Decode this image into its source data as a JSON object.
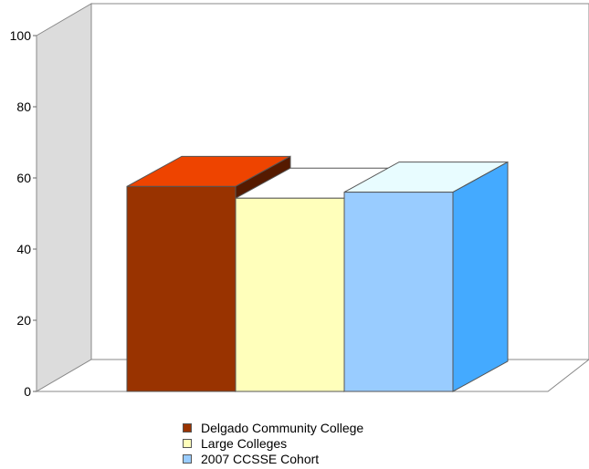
{
  "chart_data": {
    "type": "bar",
    "title": "",
    "xlabel": "",
    "ylabel": "",
    "ylim": [
      0,
      100
    ],
    "yticks": [
      0,
      20,
      40,
      60,
      80,
      100
    ],
    "grid": false,
    "style": "3d",
    "legend_position": "bottom",
    "series": [
      {
        "name": "Delgado Community College",
        "value": 57.6,
        "color": "#993300",
        "top_color": "#ee4400",
        "side_color": "#551a00"
      },
      {
        "name": "Large Colleges",
        "value": 54.3,
        "color": "#ffffbb",
        "top_color": "#ffffff",
        "side_color": "#ffffff"
      },
      {
        "name": "2007 CCSSE Cohort",
        "value": 56.0,
        "color": "#99ccff",
        "top_color": "#e8fcff",
        "side_color": "#44aaff"
      }
    ]
  }
}
